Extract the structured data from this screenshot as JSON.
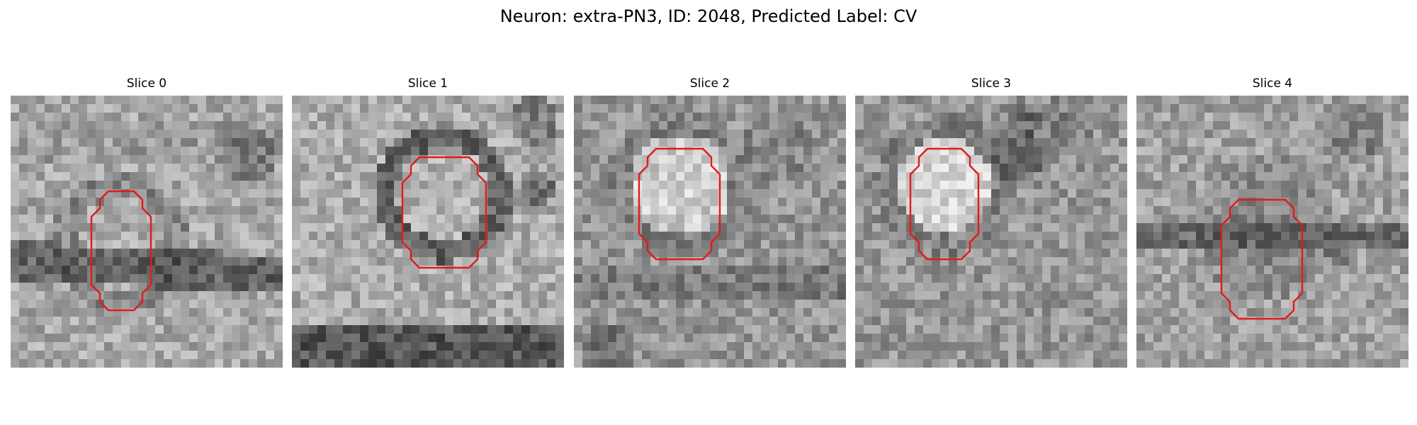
{
  "figure": {
    "title": "Neuron: extra-PN3, ID: 2048, Predicted Label: CV"
  },
  "contour_color": "#e31a1c",
  "panels": [
    {
      "title": "Slice 0"
    },
    {
      "title": "Slice 1"
    },
    {
      "title": "Slice 2"
    },
    {
      "title": "Slice 3"
    },
    {
      "title": "Slice 4"
    }
  ]
}
